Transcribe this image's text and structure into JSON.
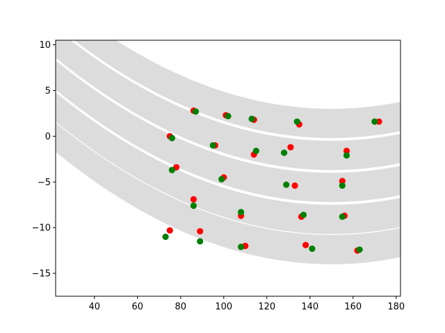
{
  "chart_data": {
    "type": "scatter",
    "title": "",
    "xlabel": "",
    "ylabel": "",
    "xlim": [
      22,
      182
    ],
    "ylim": [
      -17.5,
      10.5
    ],
    "xticks": [
      40,
      60,
      80,
      100,
      120,
      140,
      160,
      180
    ],
    "yticks": [
      10,
      5,
      0,
      -5,
      -10,
      -15
    ],
    "grid": false,
    "band_color": "#dcdcdc",
    "bands": [
      {
        "upper": {
          "a": 0.00075,
          "h": 150,
          "k": 3.0
        },
        "lower": {
          "a": 0.00075,
          "h": 150,
          "k": -0.2
        }
      },
      {
        "upper": {
          "a": 0.00075,
          "h": 150,
          "k": -0.5
        },
        "lower": {
          "a": 0.00075,
          "h": 150,
          "k": -3.7
        }
      },
      {
        "upper": {
          "a": 0.00075,
          "h": 150,
          "k": -4.0
        },
        "lower": {
          "a": 0.00075,
          "h": 150,
          "k": -7.2
        }
      },
      {
        "upper": {
          "a": 0.00075,
          "h": 150,
          "k": -7.5
        },
        "lower": {
          "a": 0.00075,
          "h": 150,
          "k": -10.7
        }
      },
      {
        "upper": {
          "a": 0.00075,
          "h": 150,
          "k": -10.8
        },
        "lower": {
          "a": 0.00075,
          "h": 150,
          "k": -14.0
        }
      }
    ],
    "series": [
      {
        "color": "#ff0000",
        "points": [
          [
            86,
            2.8
          ],
          [
            101,
            2.3
          ],
          [
            114,
            1.8
          ],
          [
            135,
            1.3
          ],
          [
            172,
            1.6
          ],
          [
            75,
            0.0
          ],
          [
            96,
            -1.0
          ],
          [
            114,
            -2.0
          ],
          [
            131,
            -1.2
          ],
          [
            157,
            -1.6
          ],
          [
            78,
            -3.4
          ],
          [
            100,
            -4.5
          ],
          [
            133,
            -5.4
          ],
          [
            155,
            -4.9
          ],
          [
            86,
            -6.9
          ],
          [
            108,
            -8.7
          ],
          [
            136,
            -8.8
          ],
          [
            156,
            -8.7
          ],
          [
            75,
            -10.3
          ],
          [
            89,
            -10.4
          ],
          [
            110,
            -12.0
          ],
          [
            138,
            -11.9
          ],
          [
            162,
            -12.5
          ]
        ]
      },
      {
        "color": "#008000",
        "points": [
          [
            87,
            2.7
          ],
          [
            102,
            2.2
          ],
          [
            113,
            1.9
          ],
          [
            134,
            1.6
          ],
          [
            170,
            1.6
          ],
          [
            76,
            -0.2
          ],
          [
            95,
            -1.0
          ],
          [
            115,
            -1.6
          ],
          [
            128,
            -1.8
          ],
          [
            157,
            -2.1
          ],
          [
            76,
            -3.7
          ],
          [
            99,
            -4.7
          ],
          [
            129,
            -5.3
          ],
          [
            155,
            -5.4
          ],
          [
            86,
            -7.6
          ],
          [
            108,
            -8.3
          ],
          [
            137,
            -8.6
          ],
          [
            155,
            -8.8
          ],
          [
            73,
            -11.0
          ],
          [
            89,
            -11.5
          ],
          [
            108,
            -12.1
          ],
          [
            141,
            -12.3
          ],
          [
            163,
            -12.4
          ]
        ]
      }
    ]
  }
}
